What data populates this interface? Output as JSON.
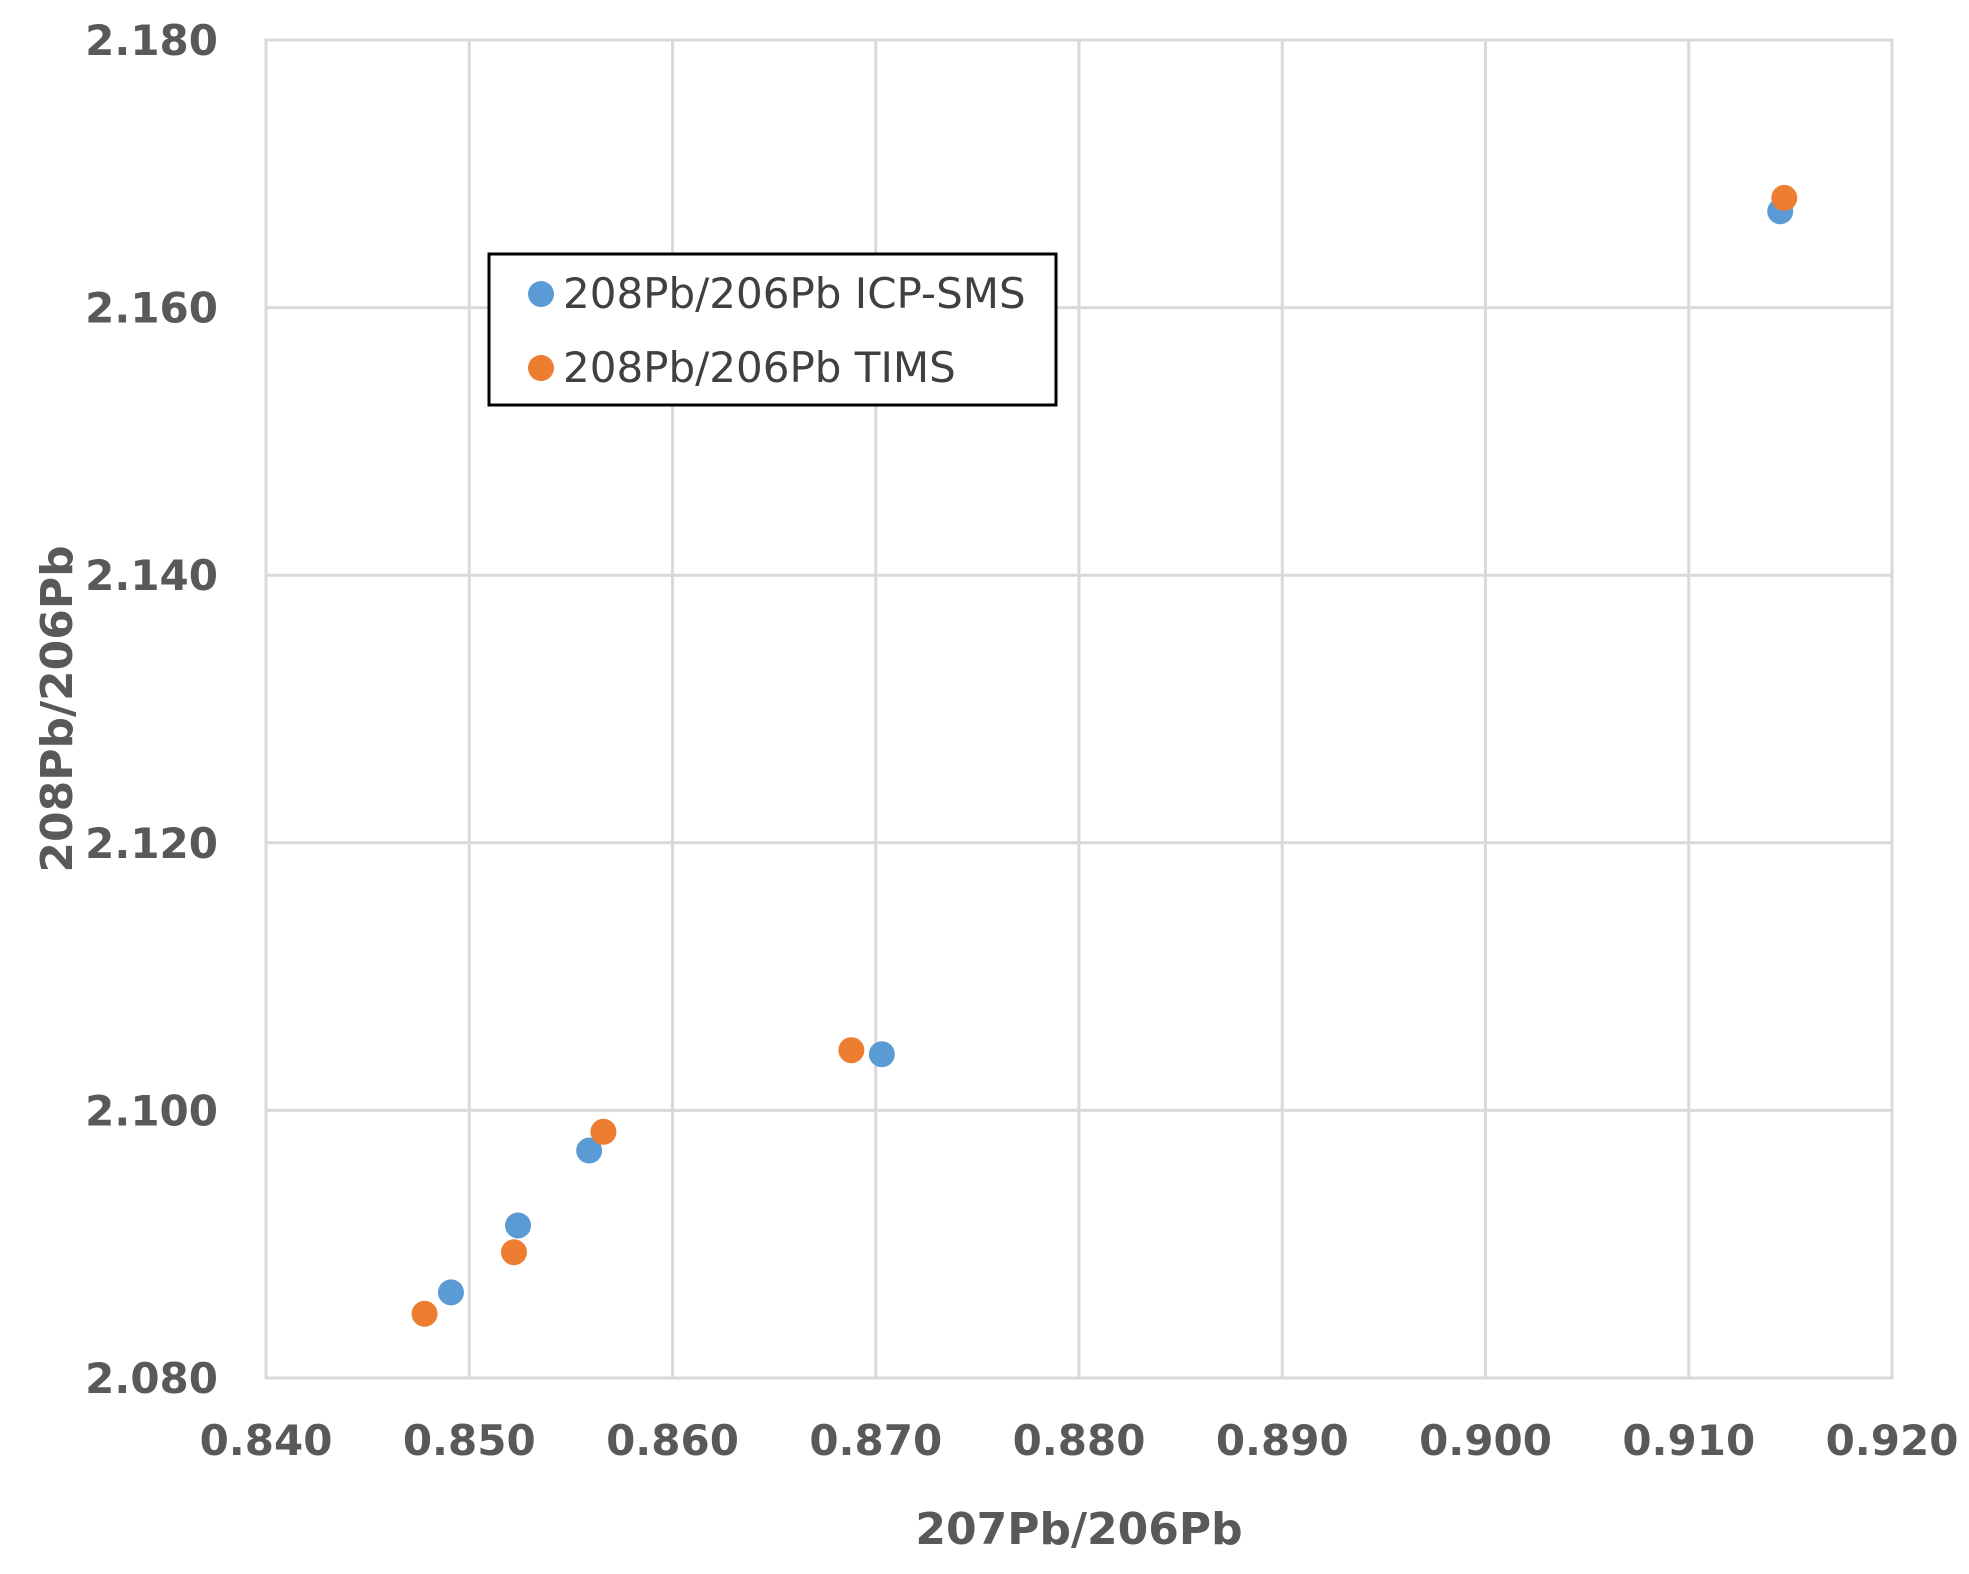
{
  "chart_data": {
    "type": "scatter",
    "title": "",
    "xlabel": "207Pb/206Pb",
    "ylabel": "208Pb/206Pb",
    "xlim": [
      0.84,
      0.92
    ],
    "ylim": [
      2.08,
      2.18
    ],
    "x_ticks": [
      "0.840",
      "0.850",
      "0.860",
      "0.870",
      "0.880",
      "0.890",
      "0.900",
      "0.910",
      "0.920"
    ],
    "y_ticks": [
      "2.080",
      "2.100",
      "2.120",
      "2.140",
      "2.160",
      "2.180"
    ],
    "grid": true,
    "legend_position": "upper-left, inside plot area",
    "series": [
      {
        "name": "208Pb/206Pb ICP-SMS",
        "color": "#5b9bd5",
        "points": [
          {
            "x": 0.8491,
            "y": 2.0864
          },
          {
            "x": 0.8524,
            "y": 2.0914
          },
          {
            "x": 0.8559,
            "y": 2.097
          },
          {
            "x": 0.8703,
            "y": 2.1042
          },
          {
            "x": 0.9145,
            "y": 2.1672
          }
        ]
      },
      {
        "name": "208Pb/206Pb TIMS",
        "color": "#ed7d31",
        "points": [
          {
            "x": 0.8478,
            "y": 2.0848
          },
          {
            "x": 0.8522,
            "y": 2.0894
          },
          {
            "x": 0.8566,
            "y": 2.0984
          },
          {
            "x": 0.8688,
            "y": 2.1045
          },
          {
            "x": 0.9147,
            "y": 2.1682
          }
        ]
      }
    ]
  }
}
